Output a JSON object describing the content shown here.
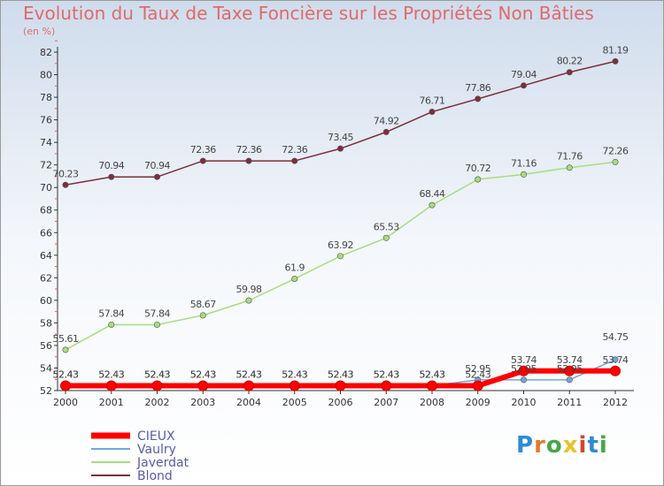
{
  "title": "Evolution du Taux de Taxe Foncière sur les Propriétés Non Bâties",
  "unit": "(en %)",
  "logo": "Proxiti",
  "chart_data": {
    "type": "line",
    "title": "Evolution du Taux de Taxe Foncière sur les Propriétés Non Bâties",
    "ylabel": "(en %)",
    "xlabel": "",
    "x": [
      "2000",
      "2001",
      "2002",
      "2003",
      "2004",
      "2005",
      "2006",
      "2007",
      "2008",
      "2009",
      "2010",
      "2011",
      "2012"
    ],
    "ylim": [
      52,
      82
    ],
    "yticks": [
      "52",
      "54",
      "56",
      "58",
      "60",
      "62",
      "64",
      "66",
      "68",
      "70",
      "72",
      "74",
      "76",
      "78",
      "80",
      "82"
    ],
    "grid": false,
    "legend": "bottom-left",
    "series": [
      {
        "name": "CIEUX",
        "color": "#ff0000",
        "values": [
          52.43,
          52.43,
          52.43,
          52.43,
          52.43,
          52.43,
          52.43,
          52.43,
          52.43,
          52.43,
          53.74,
          53.74,
          53.74
        ],
        "labels": [
          "52.43",
          "52.43",
          "52.43",
          "52.43",
          "52.43",
          "52.43",
          "52.43",
          "52.43",
          "52.43",
          "52.43",
          "53.74",
          "53.74",
          "53.74"
        ]
      },
      {
        "name": "Vaulry",
        "color": "#6fa8dc",
        "values": [
          52.43,
          52.43,
          52.43,
          52.43,
          52.43,
          52.43,
          52.43,
          52.43,
          52.43,
          52.95,
          52.95,
          52.95,
          54.75
        ],
        "labels": [
          "52.43",
          "52.43",
          "52.43",
          "52.43",
          "52.43",
          "52.43",
          "52.43",
          "52.43",
          "52.43",
          "52.95",
          "52.95",
          "52.95",
          "54.75"
        ]
      },
      {
        "name": "Javerdat",
        "color": "#a9dc7c",
        "values": [
          55.61,
          57.84,
          57.84,
          58.67,
          59.98,
          61.9,
          63.92,
          65.53,
          68.44,
          70.72,
          71.16,
          71.76,
          72.26
        ],
        "labels": [
          "55.61",
          "57.84",
          "57.84",
          "58.67",
          "59.98",
          "61.9",
          "63.92",
          "65.53",
          "68.44",
          "70.72",
          "71.16",
          "71.76",
          "72.26"
        ]
      },
      {
        "name": "Blond",
        "color": "#7f2d3a",
        "values": [
          70.23,
          70.94,
          70.94,
          72.36,
          72.36,
          72.36,
          73.45,
          74.92,
          76.71,
          77.86,
          79.04,
          80.22,
          81.19
        ],
        "labels": [
          "70.23",
          "70.94",
          "70.94",
          "72.36",
          "72.36",
          "72.36",
          "73.45",
          "74.92",
          "76.71",
          "77.86",
          "79.04",
          "80.22",
          "81.19"
        ]
      }
    ]
  }
}
